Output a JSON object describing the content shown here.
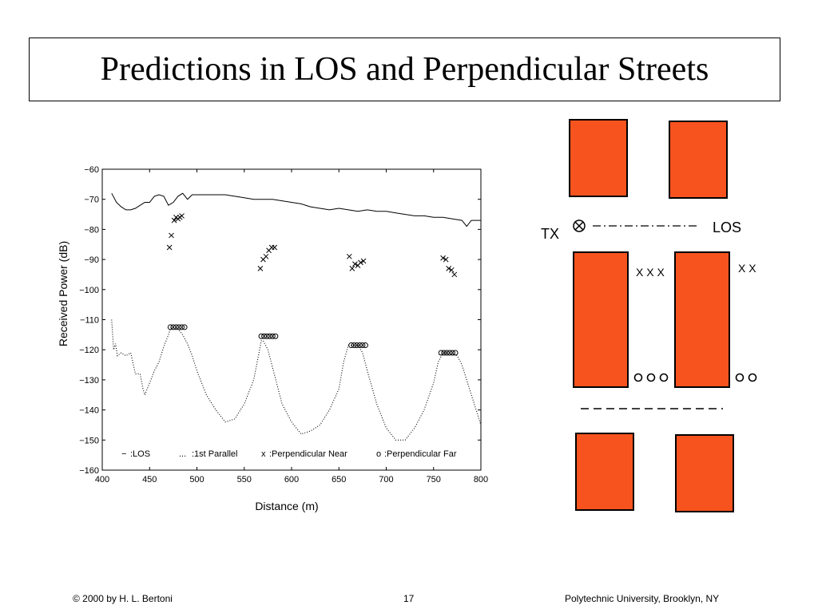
{
  "slide": {
    "title": "Predictions in LOS and Perpendicular Streets"
  },
  "chart_data": {
    "type": "line",
    "xlabel": "Distance (m)",
    "ylabel": "Received Power (dB)",
    "xlim": [
      400,
      800
    ],
    "ylim": [
      -160,
      -60
    ],
    "x_ticks": [
      "400",
      "450",
      "500",
      "550",
      "600",
      "650",
      "700",
      "750",
      "800"
    ],
    "y_ticks": [
      "−60",
      "−70",
      "−80",
      "−90",
      "−100",
      "−110",
      "−120",
      "−130",
      "−140",
      "−150",
      "−160"
    ],
    "x_tick_values": [
      400,
      450,
      500,
      550,
      600,
      650,
      700,
      750,
      800
    ],
    "y_tick_values": [
      -60,
      -70,
      -80,
      -90,
      -100,
      -110,
      -120,
      -130,
      -140,
      -150,
      -160
    ],
    "grid": false,
    "legend": [
      {
        "marker": "−",
        "text": ":LOS"
      },
      {
        "marker": "...",
        "text": ":1st Parallel"
      },
      {
        "marker": "x",
        "text": ":Perpendicular Near"
      },
      {
        "marker": "o",
        "text": ":Perpendicular Far"
      }
    ],
    "series": [
      {
        "name": "LOS",
        "style": "solid",
        "x": [
          410,
          415,
          420,
          425,
          430,
          435,
          440,
          445,
          450,
          455,
          460,
          465,
          470,
          475,
          480,
          485,
          490,
          495,
          500,
          510,
          520,
          530,
          540,
          550,
          560,
          570,
          580,
          590,
          600,
          610,
          620,
          630,
          640,
          650,
          660,
          670,
          680,
          690,
          700,
          710,
          720,
          730,
          740,
          750,
          760,
          770,
          780,
          785,
          790,
          795,
          800
        ],
        "y": [
          -68,
          -71,
          -72.5,
          -73.5,
          -73.5,
          -73,
          -72,
          -71,
          -71,
          -69,
          -68.5,
          -69,
          -72,
          -71,
          -69,
          -68,
          -70,
          -68.5,
          -68.5,
          -68.5,
          -68.5,
          -68.5,
          -69,
          -69.5,
          -70,
          -70,
          -70,
          -70.5,
          -71,
          -71.5,
          -72.5,
          -73,
          -73.5,
          -73,
          -73.5,
          -74,
          -73.5,
          -74,
          -74,
          -74.5,
          -75,
          -75.5,
          -75.5,
          -76,
          -76,
          -76.5,
          -77,
          -79,
          -77,
          -77,
          -77
        ]
      },
      {
        "name": "1st Parallel",
        "style": "dotted",
        "x": [
          410,
          412,
          414,
          416,
          420,
          425,
          430,
          435,
          440,
          443,
          445,
          450,
          455,
          460,
          465,
          470,
          472,
          475,
          480,
          485,
          490,
          495,
          500,
          510,
          520,
          530,
          540,
          550,
          560,
          565,
          568,
          570,
          575,
          580,
          585,
          590,
          600,
          610,
          620,
          630,
          640,
          650,
          655,
          660,
          665,
          670,
          675,
          680,
          690,
          700,
          710,
          720,
          730,
          740,
          750,
          755,
          760,
          765,
          770,
          775,
          780,
          790,
          800
        ],
        "y": [
          -110,
          -120,
          -118,
          -122,
          -121,
          -122,
          -121,
          -128,
          -128,
          -133,
          -135,
          -131,
          -127,
          -124,
          -119,
          -115,
          -113,
          -112.5,
          -113,
          -115,
          -118,
          -122,
          -127,
          -135,
          -140,
          -144,
          -143,
          -138,
          -130,
          -122,
          -117,
          -117,
          -120,
          -126,
          -132,
          -138,
          -144,
          -148,
          -147,
          -145,
          -140,
          -133,
          -124,
          -118.5,
          -118.5,
          -118.5,
          -121,
          -127,
          -138,
          -146,
          -150,
          -150,
          -146,
          -140,
          -131,
          -124,
          -121,
          -121,
          -121,
          -122,
          -125,
          -135,
          -145
        ]
      }
    ],
    "perpendicular_near": {
      "name": "Perpendicular Near",
      "points": [
        [
          471,
          -86
        ],
        [
          473,
          -82
        ],
        [
          476,
          -77
        ],
        [
          478,
          -76
        ],
        [
          480,
          -76.5
        ],
        [
          482,
          -76
        ],
        [
          484,
          -75.5
        ],
        [
          567,
          -93
        ],
        [
          570,
          -90
        ],
        [
          573,
          -89
        ],
        [
          576,
          -87
        ],
        [
          579,
          -86
        ],
        [
          582,
          -86
        ],
        [
          661,
          -89
        ],
        [
          664,
          -93
        ],
        [
          667,
          -91.5
        ],
        [
          670,
          -92
        ],
        [
          673,
          -91
        ],
        [
          676,
          -90.5
        ],
        [
          760,
          -89.5
        ],
        [
          763,
          -90
        ],
        [
          766,
          -93
        ],
        [
          769,
          -93.5
        ],
        [
          772,
          -95
        ]
      ]
    },
    "perpendicular_far": {
      "name": "Perpendicular Far",
      "points": [
        [
          472,
          -112.5
        ],
        [
          475,
          -112.5
        ],
        [
          478,
          -112.5
        ],
        [
          481,
          -112.5
        ],
        [
          484,
          -112.5
        ],
        [
          487,
          -112.5
        ],
        [
          568,
          -115.5
        ],
        [
          571,
          -115.5
        ],
        [
          574,
          -115.5
        ],
        [
          577,
          -115.5
        ],
        [
          580,
          -115.5
        ],
        [
          583,
          -115.5
        ],
        [
          663,
          -118.5
        ],
        [
          666,
          -118.5
        ],
        [
          669,
          -118.5
        ],
        [
          672,
          -118.5
        ],
        [
          675,
          -118.5
        ],
        [
          678,
          -118.5
        ],
        [
          758,
          -121
        ],
        [
          761,
          -121
        ],
        [
          764,
          -121
        ],
        [
          767,
          -121
        ],
        [
          770,
          -121
        ],
        [
          773,
          -121
        ]
      ]
    }
  },
  "diagram": {
    "tx_label": "TX",
    "los_label": "LOS",
    "near_marks_1": "X X X",
    "near_marks_2": "X X",
    "building_color": "#f7531f"
  },
  "footer": {
    "left": "© 2000 by H. L. Bertoni",
    "center": "17",
    "right": "Polytechnic University, Brooklyn, NY"
  }
}
